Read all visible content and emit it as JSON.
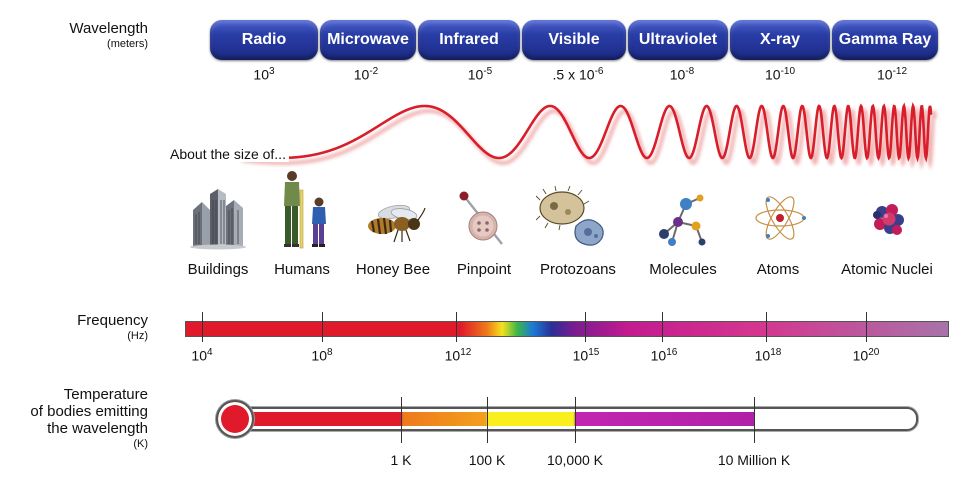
{
  "wavelength": {
    "label": "Wavelength",
    "unit": "(meters)",
    "bands": [
      "Radio",
      "Microwave",
      "Infrared",
      "Visible",
      "Ultraviolet",
      "X-ray",
      "Gamma Ray"
    ],
    "values": [
      {
        "base": "10",
        "exp": "3"
      },
      {
        "base": "10",
        "exp": "-2"
      },
      {
        "base": "10",
        "exp": "-5"
      },
      {
        "base": ".5 x 10",
        "exp": "-6"
      },
      {
        "base": "10",
        "exp": "-8"
      },
      {
        "base": "10",
        "exp": "-10"
      },
      {
        "base": "10",
        "exp": "-12"
      }
    ]
  },
  "size": {
    "label": "About the size of...",
    "items": [
      "Buildings",
      "Humans",
      "Honey Bee",
      "Pinpoint",
      "Protozoans",
      "Molecules",
      "Atoms",
      "Atomic Nuclei"
    ]
  },
  "frequency": {
    "label": "Frequency",
    "unit": "(Hz)",
    "ticks": [
      {
        "base": "10",
        "exp": "4"
      },
      {
        "base": "10",
        "exp": "8"
      },
      {
        "base": "10",
        "exp": "12"
      },
      {
        "base": "10",
        "exp": "15"
      },
      {
        "base": "10",
        "exp": "16"
      },
      {
        "base": "10",
        "exp": "18"
      },
      {
        "base": "10",
        "exp": "20"
      }
    ]
  },
  "temperature": {
    "label_line1": "Temperature",
    "label_line2": "of bodies emitting",
    "label_line3": "the wavelength",
    "unit": "(K)",
    "ticks": [
      "1 K",
      "100 K",
      "10,000 K",
      "10 Million K"
    ]
  },
  "colors": {
    "band_blue": "#2a3ea8",
    "wave_red": "#d81e2a",
    "thermo_red": "#e0192b",
    "thermo_orange": "#ee7a1b",
    "thermo_yellow": "#f8ef1c",
    "thermo_purple": "#b021a8"
  },
  "icons": [
    "buildings-icon",
    "humans-icon",
    "honey-bee-icon",
    "pin-icon",
    "protozoan-icon",
    "molecule-icon",
    "atom-icon",
    "atomic-nucleus-icon"
  ]
}
